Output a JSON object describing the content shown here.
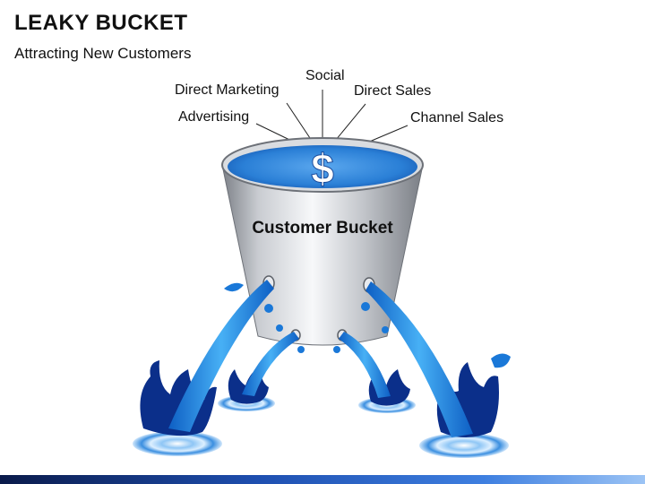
{
  "slide": {
    "title": "LEAKY BUCKET",
    "subtitle": "Attracting New Customers"
  },
  "bucket": {
    "label": "Customer Bucket",
    "symbol": "$"
  },
  "channels": [
    {
      "label": "Social"
    },
    {
      "label": "Direct Marketing"
    },
    {
      "label": "Direct Sales"
    },
    {
      "label": "Advertising"
    },
    {
      "label": "Channel Sales"
    }
  ],
  "colors": {
    "water": "#1a78d8",
    "water_dark": "#0b2f8a",
    "bucket": "#b8bcc2",
    "bar": "#1e4fb0"
  }
}
